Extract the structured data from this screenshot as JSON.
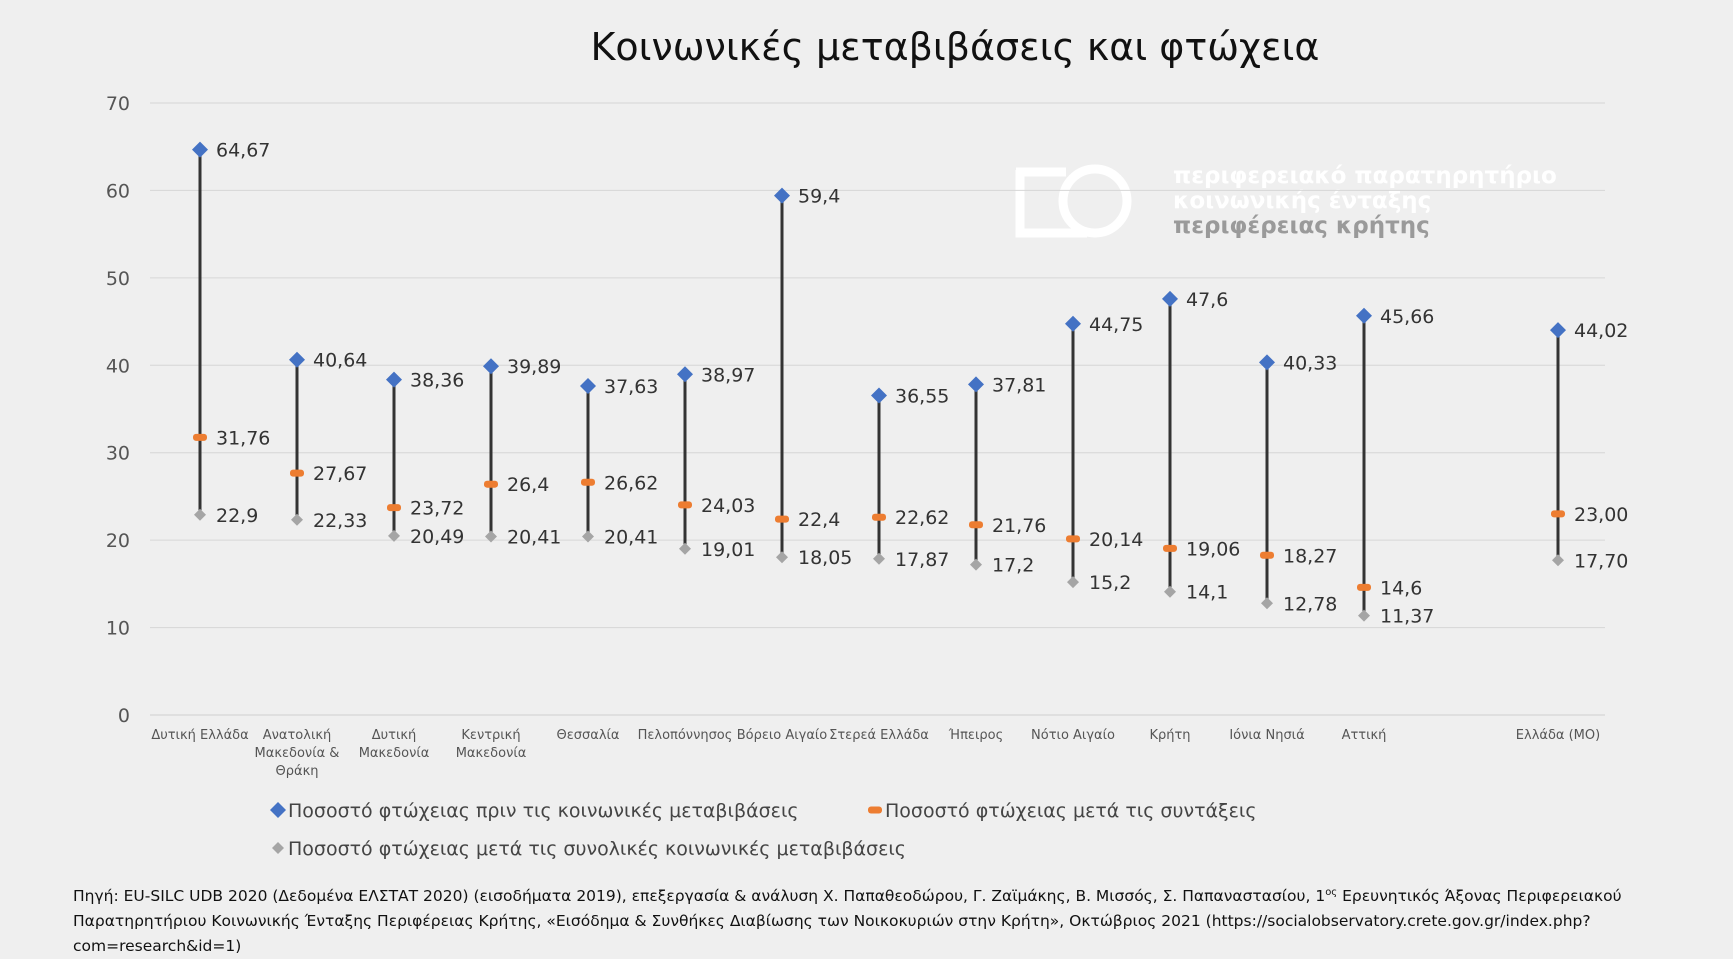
{
  "chart_data": {
    "type": "dot-range",
    "title": "Κοινωνικές μεταβιβάσεις και φτώχεια",
    "ylim": [
      0,
      70
    ],
    "yticks": [
      "0",
      "10",
      "20",
      "30",
      "40",
      "50",
      "60",
      "70"
    ],
    "grid": true,
    "legend_position": "bottom",
    "categories": [
      [
        "Δυτική Ελλάδα"
      ],
      [
        "Ανατολική",
        "Μακεδονία &",
        "Θράκη"
      ],
      [
        "Δυτική",
        "Μακεδονία"
      ],
      [
        "Κεντρική",
        "Μακεδονία"
      ],
      [
        "Θεσσαλία"
      ],
      [
        "Πελοπόννησος"
      ],
      [
        "Βόρειο Αιγαίο"
      ],
      [
        "Στερεά Ελλάδα"
      ],
      [
        "Ήπειρος"
      ],
      [
        "Νότιο Αιγαίο"
      ],
      [
        "Κρήτη"
      ],
      [
        "Ιόνια Νησιά"
      ],
      [
        "Αττική"
      ],
      [
        "Ελλάδα (ΜΟ)"
      ]
    ],
    "category_slots": [
      0,
      1,
      2,
      3,
      4,
      5,
      6,
      7,
      8,
      9,
      10,
      11,
      12,
      14
    ],
    "series": [
      {
        "name": "Ποσοστό φτώχειας πριν τις κοινωνικές μεταβιβάσεις",
        "marker": "diamond",
        "color": "#4472c4",
        "values": [
          64.67,
          40.64,
          38.36,
          39.89,
          37.63,
          38.97,
          59.4,
          36.55,
          37.81,
          44.75,
          47.6,
          40.33,
          45.66,
          44.02
        ],
        "labels": [
          "64,67",
          "40,64",
          "38,36",
          "39,89",
          "37,63",
          "38,97",
          "59,4",
          "36,55",
          "37,81",
          "44,75",
          "47,6",
          "40,33",
          "45,66",
          "44,02"
        ]
      },
      {
        "name": "Ποσοστό φτώχειας μετά τις συντάξεις",
        "marker": "dash",
        "color": "#ed7d31",
        "values": [
          31.76,
          27.67,
          23.72,
          26.4,
          26.62,
          24.03,
          22.4,
          22.62,
          21.76,
          20.14,
          19.06,
          18.27,
          14.6,
          23.0
        ],
        "labels": [
          "31,76",
          "27,67",
          "23,72",
          "26,4",
          "26,62",
          "24,03",
          "22,4",
          "22,62",
          "21,76",
          "20,14",
          "19,06",
          "18,27",
          "14,6",
          "23,00"
        ]
      },
      {
        "name": "Ποσοστό φτώχειας μετά τις συνολικές κοινωνικές μεταβιβάσεις",
        "marker": "diamond",
        "color": "#a5a5a5",
        "values": [
          22.9,
          22.33,
          20.49,
          20.41,
          20.41,
          19.01,
          18.05,
          17.87,
          17.2,
          15.2,
          14.1,
          12.78,
          11.37,
          17.7
        ],
        "labels": [
          "22,9",
          "22,33",
          "20,49",
          "20,41",
          "20,41",
          "19,01",
          "18,05",
          "17,87",
          "17,2",
          "15,2",
          "14,1",
          "12,78",
          "11,37",
          "17,70"
        ]
      }
    ]
  },
  "logo": {
    "line1": "περιφερειακό παρατηρητήριο",
    "line2": "κοινωνικής ένταξης",
    "line3": "περιφέρειας κρήτης"
  },
  "source": {
    "before_sup": "Πηγή: EU-SILC UDB 2020 (Δεδομένα ΕΛΣΤΑΤ 2020) (εισοδήματα 2019), επεξεργασία & ανάλυση Χ. Παπαθεοδώρου, Γ. Ζαϊμάκης, Β. Μισσός, Σ. Παπαναστασίου, 1",
    "sup": "ος",
    "after_sup": " Ερευνητικός Άξονας Περιφερειακού Παρατηρητήριου Κοινωνικής Ένταξης Περιφέρειας Κρήτης, «Εισόδημα & Συνθήκες Διαβίωσης των Νοικοκυριών στην Κρήτη», Οκτώβριος 2021 (https://socialobservatory.crete.gov.gr/index.php?com=research&id=1)"
  }
}
